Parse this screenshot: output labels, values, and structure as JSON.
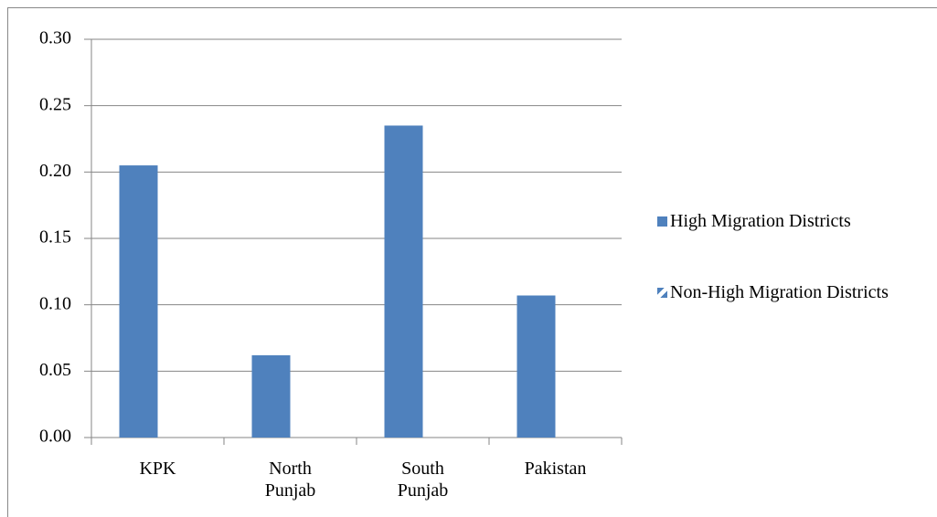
{
  "chart_data": {
    "type": "bar",
    "categories": [
      "KPK",
      "North Punjab",
      "South Punjab",
      "Pakistan"
    ],
    "series": [
      {
        "name": "High Migration Districts",
        "color": "#4f81bd",
        "values": [
          0.205,
          0.062,
          0.235,
          0.107
        ]
      },
      {
        "name": "Non-High Migration Districts",
        "color": "#4f81bd",
        "values": [
          null,
          null,
          null,
          null
        ]
      }
    ],
    "ylim": [
      0,
      0.3
    ],
    "yticks": [
      {
        "value": 0,
        "label": "0.00"
      },
      {
        "value": 0.05,
        "label": "0.05"
      },
      {
        "value": 0.1,
        "label": "0.10"
      },
      {
        "value": 0.15,
        "label": "0.15"
      },
      {
        "value": 0.2,
        "label": "0.20"
      },
      {
        "value": 0.25,
        "label": "0.25"
      },
      {
        "value": 0.3,
        "label": "0.30"
      }
    ],
    "grid": true,
    "legend": "right"
  }
}
